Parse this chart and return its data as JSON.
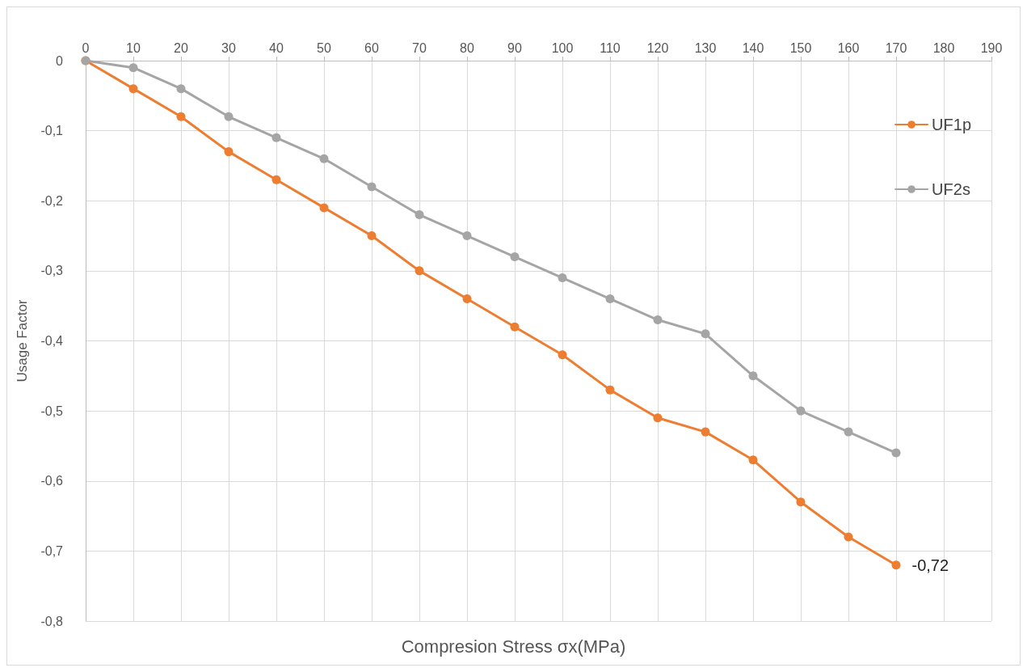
{
  "chart_data": {
    "type": "line",
    "xlabel": "Compresion Stress σx(MPa)",
    "ylabel": "Usage Factor",
    "x": [
      0,
      10,
      20,
      30,
      40,
      50,
      60,
      70,
      80,
      90,
      100,
      110,
      120,
      130,
      140,
      150,
      160,
      170
    ],
    "series": [
      {
        "name": "UF1p",
        "color": "#ed7d31",
        "values": [
          0,
          -0.04,
          -0.08,
          -0.13,
          -0.17,
          -0.21,
          -0.25,
          -0.3,
          -0.34,
          -0.38,
          -0.42,
          -0.47,
          -0.51,
          -0.53,
          -0.57,
          -0.63,
          -0.68,
          -0.72
        ],
        "value_labels": [
          null,
          null,
          null,
          null,
          null,
          null,
          null,
          null,
          null,
          null,
          null,
          null,
          null,
          null,
          null,
          null,
          null,
          "-0,72"
        ]
      },
      {
        "name": "UF2s",
        "color": "#a5a5a5",
        "values": [
          0,
          -0.01,
          -0.04,
          -0.08,
          -0.11,
          -0.14,
          -0.18,
          -0.22,
          -0.25,
          -0.28,
          -0.31,
          -0.34,
          -0.37,
          -0.39,
          -0.45,
          -0.5,
          -0.53,
          -0.56
        ]
      }
    ],
    "xlim": [
      0,
      190
    ],
    "xticks": [
      0,
      10,
      20,
      30,
      40,
      50,
      60,
      70,
      80,
      90,
      100,
      110,
      120,
      130,
      140,
      150,
      160,
      170,
      180,
      190
    ],
    "ylim": [
      -0.8,
      0
    ],
    "yticks": [
      {
        "value": -0.8,
        "label": "-0,8"
      },
      {
        "value": -0.7,
        "label": "-0,7"
      },
      {
        "value": -0.6,
        "label": "-0,6"
      },
      {
        "value": -0.5,
        "label": "-0,5"
      },
      {
        "value": -0.4,
        "label": "-0,4"
      },
      {
        "value": -0.3,
        "label": "-0,3"
      },
      {
        "value": -0.2,
        "label": "-0,2"
      },
      {
        "value": -0.1,
        "label": "-0,1"
      },
      {
        "value": 0,
        "label": "0"
      }
    ],
    "grid": true,
    "legend": "top right",
    "marker": "circle",
    "line_style": "solid"
  }
}
